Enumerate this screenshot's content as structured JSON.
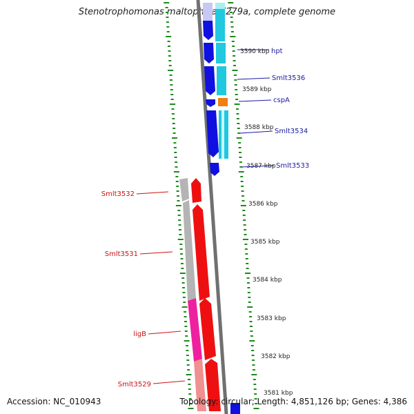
{
  "header": {
    "title": "Stenotrophomonas maltophilia K279a, complete genome"
  },
  "footer": {
    "accession": "Accession: NC_010943",
    "summary": "Topology: circular; Length: 4,851,126 bp; Genes: 4,386"
  },
  "scale_ticks": [
    {
      "label": "3590 kbp"
    },
    {
      "label": "3589 kbp"
    },
    {
      "label": "3588 kbp"
    },
    {
      "label": "3587 kbp"
    },
    {
      "label": "3586 kbp"
    },
    {
      "label": "3585 kbp"
    },
    {
      "label": "3584 kbp"
    },
    {
      "label": "3583 kbp"
    },
    {
      "label": "3582 kbp"
    },
    {
      "label": "3581 kbp"
    }
  ],
  "genes": [
    {
      "name": "hpt",
      "strand": "right"
    },
    {
      "name": "Smlt3536",
      "strand": "right"
    },
    {
      "name": "cspA",
      "strand": "right"
    },
    {
      "name": "Smlt3534",
      "strand": "right"
    },
    {
      "name": "Smlt3533",
      "strand": "right"
    },
    {
      "name": "Smlt3532",
      "strand": "left"
    },
    {
      "name": "Smlt3531",
      "strand": "left"
    },
    {
      "name": "ligB",
      "strand": "left"
    },
    {
      "name": "Smlt3529",
      "strand": "left"
    }
  ],
  "colors": {
    "forward_cds": "#1010e0",
    "forward_light": "#c8c8f4",
    "forward_cog_cyan": "#20c8e0",
    "forward_cog_orange": "#f08010",
    "reverse_cds": "#ee1010",
    "reverse_cog_gray": "#b4b4b4",
    "reverse_cog_magenta": "#ee20a0",
    "reverse_cog_pink": "#f09090",
    "backbone": "#808080",
    "tick_green": "#1a8a1a",
    "label_right": "#1a1aa0",
    "label_left": "#cc1010"
  }
}
